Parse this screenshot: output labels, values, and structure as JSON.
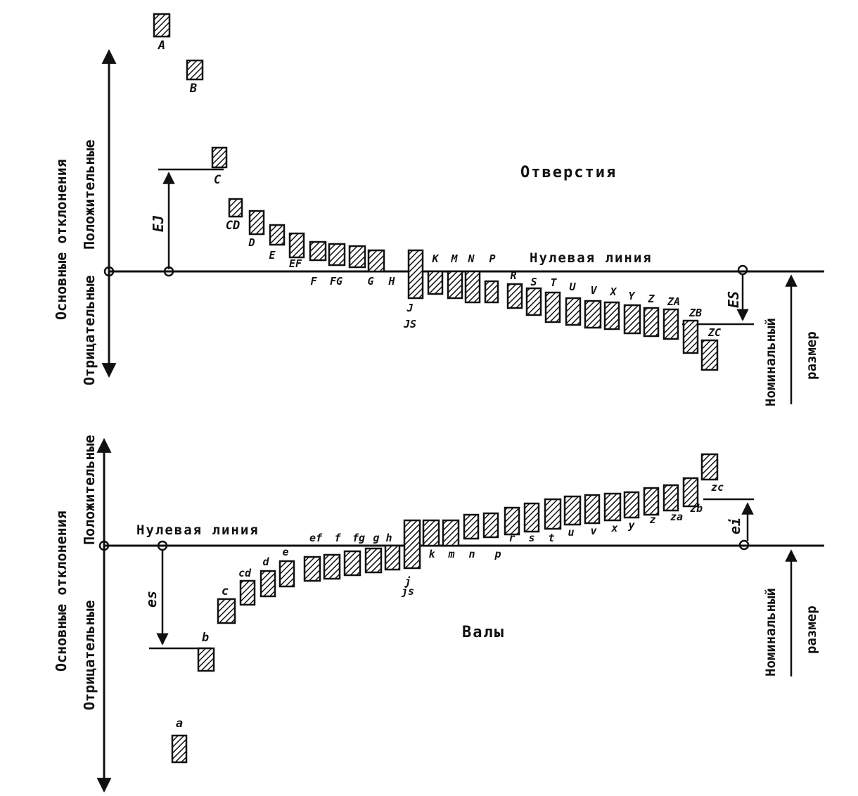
{
  "holes": {
    "title": "Отверстия",
    "zero_line_label": "Нулевая линия",
    "axis_label_main": "Основные отклонения",
    "axis_label_positive": "Положительные",
    "axis_label_negative": "Отрицательные",
    "ei_label": "EJ",
    "es_label": "ES",
    "nominal_label_1": "Номинальный",
    "nominal_label_2": "размер",
    "deviations": [
      "A",
      "B",
      "C",
      "CD",
      "D",
      "E",
      "EF",
      "F",
      "FG",
      "G",
      "H",
      "J",
      "JS",
      "K",
      "M",
      "N",
      "P",
      "R",
      "S",
      "T",
      "U",
      "V",
      "X",
      "Y",
      "Z",
      "ZA",
      "ZB",
      "ZC"
    ]
  },
  "shafts": {
    "title": "Валы",
    "zero_line_label": "Нулевая линия",
    "axis_label_main": "Основные отклонения",
    "axis_label_positive": "Положительные",
    "axis_label_negative": "Отрицательные",
    "es_label": "es",
    "ei_label": "ei",
    "nominal_label_1": "Номинальный",
    "nominal_label_2": "размер",
    "deviations": [
      "a",
      "b",
      "c",
      "cd",
      "d",
      "e",
      "ef",
      "f",
      "fg",
      "g",
      "h",
      "j",
      "js",
      "k",
      "m",
      "n",
      "p",
      "r",
      "s",
      "t",
      "u",
      "v",
      "x",
      "y",
      "z",
      "za",
      "zb",
      "zc"
    ]
  },
  "colors": {
    "ink": "#111111",
    "paper": "#ffffff"
  }
}
